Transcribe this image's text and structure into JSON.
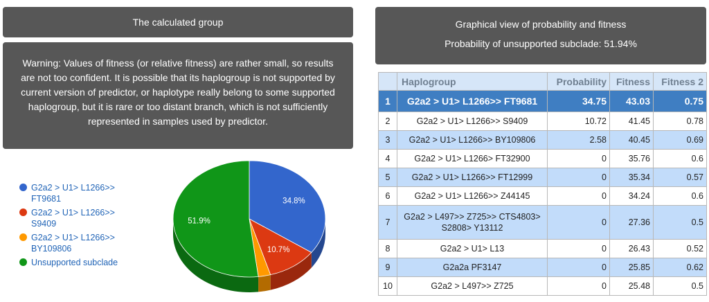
{
  "left": {
    "header": "The calculated group",
    "warning": "Warning: Values of fitness (or relative fitness) are rather small, so results are not too confident. It is possible that its haplogroup is not supported by current version of predictor, or haplotype really belong to some supported haplogroup, but it is rare or too distant branch, which is not sufficiently represented in samples used by predictor."
  },
  "right": {
    "title": "Graphical view of probability and fitness",
    "subtitle": "Probability of unsupported subclade: 51.94%"
  },
  "table": {
    "columns": [
      "Haplogroup",
      "Probability",
      "Fitness",
      "Fitness 2"
    ],
    "rows": [
      [
        1,
        "G2a2 > U1> L1266>> FT9681",
        34.75,
        43.03,
        0.75
      ],
      [
        2,
        "G2a2 > U1> L1266>> S9409",
        10.72,
        41.45,
        0.78
      ],
      [
        3,
        "G2a2 > U1> L1266>> BY109806",
        2.58,
        40.45,
        0.69
      ],
      [
        4,
        "G2a2 > U1> L1266> FT32900",
        0,
        35.76,
        0.6
      ],
      [
        5,
        "G2a2 > U1> L1266>> FT12999",
        0,
        35.34,
        0.57
      ],
      [
        6,
        "G2a2 > U1> L1266>> Z44145",
        0,
        34.24,
        0.6
      ],
      [
        7,
        "G2a2 > L497>> Z725>> CTS4803> S2808> Y13112",
        0,
        27.36,
        0.5
      ],
      [
        8,
        "G2a2 > U1> L13",
        0,
        26.43,
        0.52
      ],
      [
        9,
        "G2a2a PF3147",
        0,
        25.85,
        0.62
      ],
      [
        10,
        "G2a2 > L497>> Z725",
        0,
        25.48,
        0.5
      ]
    ]
  },
  "chart_data": {
    "type": "pie",
    "categories": [
      "G2a2 > U1> L1266>> FT9681",
      "G2a2 > U1> L1266>> S9409",
      "G2a2 > U1> L1266>> BY109806",
      "Unsupported subclade"
    ],
    "values": [
      34.8,
      10.7,
      2.6,
      51.9
    ],
    "value_labels": [
      "34.8%",
      "10.7%",
      null,
      "51.9%"
    ],
    "colors": [
      "#3366cc",
      "#dc3912",
      "#ff9900",
      "#109618"
    ],
    "legend": "left"
  }
}
